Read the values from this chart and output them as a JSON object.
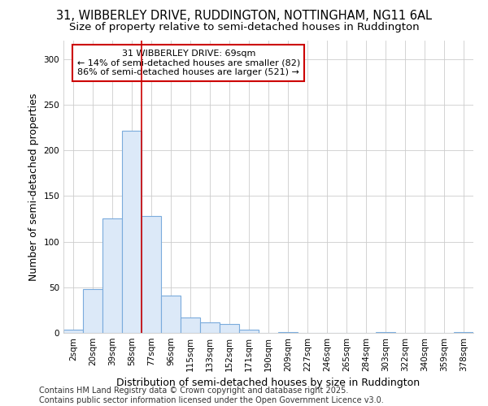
{
  "title_line1": "31, WIBBERLEY DRIVE, RUDDINGTON, NOTTINGHAM, NG11 6AL",
  "title_line2": "Size of property relative to semi-detached houses in Ruddington",
  "xlabel": "Distribution of semi-detached houses by size in Ruddington",
  "ylabel": "Number of semi-detached properties",
  "categories": [
    "2sqm",
    "20sqm",
    "39sqm",
    "58sqm",
    "77sqm",
    "96sqm",
    "115sqm",
    "133sqm",
    "152sqm",
    "171sqm",
    "190sqm",
    "209sqm",
    "227sqm",
    "246sqm",
    "265sqm",
    "284sqm",
    "303sqm",
    "322sqm",
    "340sqm",
    "359sqm",
    "378sqm"
  ],
  "values": [
    4,
    48,
    125,
    221,
    128,
    41,
    17,
    12,
    10,
    4,
    0,
    1,
    0,
    0,
    0,
    0,
    1,
    0,
    0,
    0,
    1
  ],
  "bar_color": "#dce9f8",
  "bar_edge_color": "#7aabdc",
  "annotation_title": "31 WIBBERLEY DRIVE: 69sqm",
  "annotation_line2": "← 14% of semi-detached houses are smaller (82)",
  "annotation_line3": "86% of semi-detached houses are larger (521) →",
  "annotation_box_color": "#ffffff",
  "annotation_box_edge": "#cc0000",
  "vline_color": "#cc0000",
  "vline_x": 3.5,
  "ylim": [
    0,
    320
  ],
  "yticks": [
    0,
    50,
    100,
    150,
    200,
    250,
    300
  ],
  "footer_line1": "Contains HM Land Registry data © Crown copyright and database right 2025.",
  "footer_line2": "Contains public sector information licensed under the Open Government Licence v3.0.",
  "bg_color": "#ffffff",
  "plot_bg_color": "#ffffff",
  "title_fontsize": 10.5,
  "subtitle_fontsize": 9.5,
  "axis_label_fontsize": 9,
  "tick_fontsize": 7.5,
  "footer_fontsize": 7,
  "annotation_fontsize": 8
}
